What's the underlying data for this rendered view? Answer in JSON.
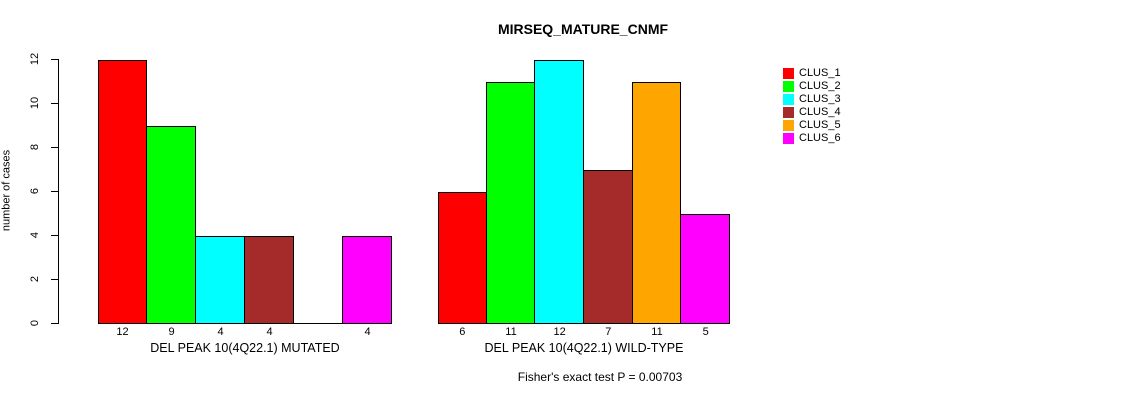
{
  "chart_data": {
    "type": "bar",
    "title": "MIRSEQ_MATURE_CNMF",
    "ylabel": "number of cases",
    "ylim": [
      0,
      12
    ],
    "yticks": [
      0,
      2,
      4,
      6,
      8,
      10,
      12
    ],
    "grid": false,
    "legend_position": "right",
    "clusters": [
      {
        "name": "CLUS_1",
        "color": "#FF0000"
      },
      {
        "name": "CLUS_2",
        "color": "#00FF00"
      },
      {
        "name": "CLUS_3",
        "color": "#00FFFF"
      },
      {
        "name": "CLUS_4",
        "color": "#A52A2A"
      },
      {
        "name": "CLUS_5",
        "color": "#FFA500"
      },
      {
        "name": "CLUS_6",
        "color": "#FF00FF"
      }
    ],
    "groups": [
      {
        "label": "DEL PEAK 10(4Q22.1) MUTATED",
        "values": [
          12,
          9,
          4,
          4,
          0,
          4
        ],
        "value_labels": [
          "12",
          "9",
          "4",
          "4",
          "",
          "4"
        ]
      },
      {
        "label": "DEL PEAK 10(4Q22.1) WILD-TYPE",
        "values": [
          6,
          11,
          12,
          7,
          11,
          5
        ],
        "value_labels": [
          "6",
          "11",
          "12",
          "7",
          "11",
          "5"
        ]
      }
    ],
    "footnote": "Fisher's exact test P = 0.00703"
  }
}
